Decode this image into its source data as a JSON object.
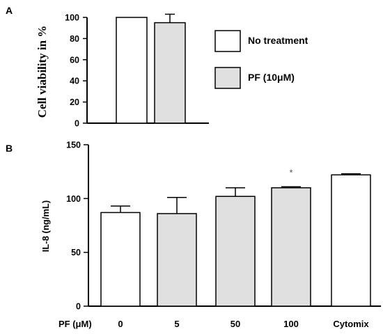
{
  "colors": {
    "control": "#ffffff",
    "treated": "#e0e0e0",
    "axis": "#000000"
  },
  "chart_data": [
    {
      "panel_label": "A",
      "type": "bar",
      "ylabel": "Cell viability in %",
      "xlabel": "",
      "ylim": [
        0,
        100
      ],
      "yticks": [
        "0",
        "20",
        "40",
        "60",
        "80",
        "100"
      ],
      "legend_position": "right",
      "categories": [
        "No treatment",
        "PF (10μM)"
      ],
      "values": [
        100,
        95
      ],
      "errors": [
        0,
        8
      ],
      "legend": [
        {
          "label": "No treatment",
          "color": "#ffffff"
        },
        {
          "label": "PF (10μM)",
          "color": "#e0e0e0"
        }
      ]
    },
    {
      "panel_label": "B",
      "type": "bar",
      "ylabel": "IL-8 (ng/mL)",
      "xlabel": "PF (μM)",
      "ylim": [
        0,
        150
      ],
      "yticks": [
        "0",
        "50",
        "100",
        "150"
      ],
      "categories": [
        "0",
        "5",
        "50",
        "100",
        "Cytomix"
      ],
      "values": [
        87,
        86,
        102,
        110,
        122
      ],
      "errors": [
        6,
        15,
        8,
        1,
        1
      ],
      "fills": [
        "#ffffff",
        "#e0e0e0",
        "#e0e0e0",
        "#e0e0e0",
        "#ffffff"
      ],
      "annotations": [
        {
          "category": "100",
          "text": "*"
        }
      ]
    }
  ]
}
